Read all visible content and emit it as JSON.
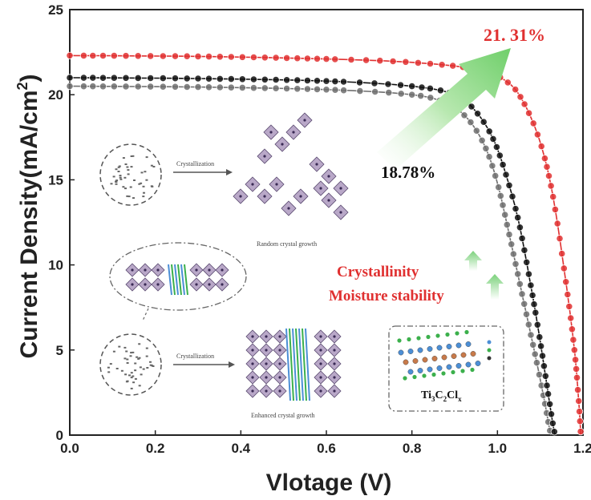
{
  "chart_data": {
    "type": "line",
    "xlabel": "Vlotage (V)",
    "ylabel": "Current Density(mA/cm",
    "ylabel_sup": "2",
    "ylabel_close": ")",
    "xlim": [
      0.0,
      1.2
    ],
    "ylim": [
      0,
      25
    ],
    "xticks": [
      "0.0",
      "0.2",
      "0.4",
      "0.6",
      "0.8",
      "1.0",
      "1.2"
    ],
    "yticks": [
      "0",
      "5",
      "10",
      "15",
      "20",
      "25"
    ],
    "xtick_values": [
      0.0,
      0.2,
      0.4,
      0.6,
      0.8,
      1.0,
      1.2
    ],
    "ytick_values": [
      0,
      5,
      10,
      15,
      20,
      25
    ],
    "series": [
      {
        "name": "gray",
        "color": "#6f6f6f",
        "x": [
          0.0,
          0.3,
          0.6,
          0.8,
          0.88,
          0.93,
          0.97,
          1.0,
          1.03,
          1.06,
          1.09,
          1.11,
          1.12,
          1.125
        ],
        "y": [
          20.5,
          20.45,
          20.3,
          20.0,
          19.5,
          18.6,
          17.0,
          14.8,
          11.5,
          8.0,
          4.5,
          2.0,
          0.6,
          0.0
        ]
      },
      {
        "name": "black",
        "color": "#111111",
        "x": [
          0.0,
          0.3,
          0.6,
          0.8,
          0.9,
          0.95,
          0.99,
          1.02,
          1.05,
          1.08,
          1.1,
          1.12,
          1.13,
          1.135
        ],
        "y": [
          21.0,
          20.95,
          20.8,
          20.5,
          20.0,
          19.0,
          17.4,
          15.3,
          12.5,
          8.5,
          5.5,
          2.2,
          0.6,
          0.0
        ]
      },
      {
        "name": "red",
        "color": "#e03030",
        "x": [
          0.0,
          0.3,
          0.6,
          0.8,
          0.95,
          1.02,
          1.06,
          1.1,
          1.13,
          1.16,
          1.18,
          1.19,
          1.195
        ],
        "y": [
          22.3,
          22.25,
          22.1,
          21.9,
          21.5,
          20.8,
          19.6,
          17.2,
          14.0,
          9.0,
          5.0,
          2.0,
          0.0
        ]
      }
    ],
    "annotations": {
      "red_pce": "21. 31%",
      "black_pce": "18.78%",
      "crystallinity": "Crystallinity",
      "moisture": "Moisture stability",
      "mxene_formula_main": "Ti",
      "mxene_sub1": "3",
      "mxene_mid": "C",
      "mxene_sub2": "2",
      "mxene_tail": "Cl",
      "mxene_sub3": "x"
    },
    "schematic": {
      "crystallization_top": "Crystallization",
      "crystallization_bottom": "Crystallization",
      "random_growth": "Random crystal growth",
      "enhanced_growth": "Enhanced crystal growth"
    }
  },
  "colors": {
    "red": "#e03030",
    "arrow_green": "#7bd17b"
  }
}
